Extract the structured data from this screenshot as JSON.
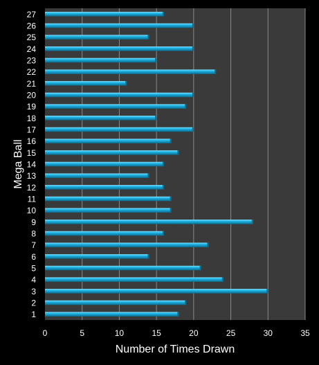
{
  "chart_data": {
    "type": "bar",
    "orientation": "horizontal",
    "categories": [
      "1",
      "2",
      "3",
      "4",
      "5",
      "6",
      "7",
      "8",
      "9",
      "10",
      "11",
      "12",
      "13",
      "14",
      "15",
      "16",
      "17",
      "18",
      "19",
      "20",
      "21",
      "22",
      "23",
      "24",
      "25",
      "26",
      "27"
    ],
    "values": [
      18,
      19,
      30,
      24,
      21,
      14,
      22,
      16,
      28,
      17,
      17,
      16,
      14,
      16,
      18,
      17,
      20,
      15,
      19,
      20,
      11,
      23,
      15,
      20,
      14,
      20,
      16
    ],
    "xlabel": "Number of Times Drawn",
    "ylabel": "Mega Ball",
    "xlim": [
      0,
      35
    ],
    "xticks": [
      "0",
      "5",
      "10",
      "15",
      "20",
      "25",
      "30",
      "35"
    ],
    "grid": "vertical",
    "legend": "none",
    "colors": {
      "page_background": "#000000",
      "plot_background": "#3a3a3a",
      "gridline": "#8a8a8a",
      "bar_light": "#7fe3ff",
      "bar_main": "#1fb4e6",
      "bar_dark": "#0a6e90",
      "text": "#ffffff"
    }
  }
}
